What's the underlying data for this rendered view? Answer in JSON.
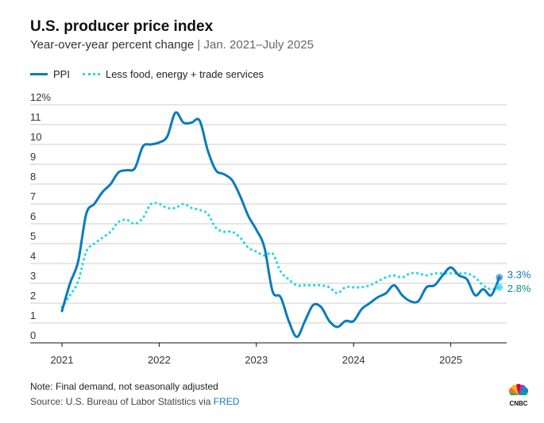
{
  "header": {
    "title": "U.S. producer price index",
    "subtitle": "Year-over-year percent change",
    "subtitle_sep": " | ",
    "subtitle_range": "Jan. 2021–July 2025"
  },
  "colors": {
    "ppi": "#0a7bbd",
    "core": "#28d8ea",
    "core_label": "#0a8f8f",
    "grid": "#cccccc"
  },
  "chart_data": {
    "type": "line",
    "title": "U.S. producer price index",
    "ylabel": "Year-over-year percent change",
    "xlabel": "",
    "ylim": [
      0,
      12
    ],
    "y_ticks": [
      "0",
      "1",
      "2",
      "3",
      "4",
      "5",
      "6",
      "7",
      "8",
      "9",
      "10",
      "11",
      "12%"
    ],
    "x_ticks": [
      "2021",
      "2022",
      "2023",
      "2024",
      "2025"
    ],
    "x_start": "2021-01",
    "frequency": "monthly",
    "grid": true,
    "legend": "top-left",
    "series": [
      {
        "name": "PPI",
        "end_label": "3.3%",
        "values": [
          1.6,
          3.0,
          4.1,
          6.5,
          7.0,
          7.6,
          8.0,
          8.6,
          8.7,
          8.8,
          9.9,
          10.0,
          10.1,
          10.4,
          11.6,
          11.1,
          11.1,
          11.2,
          9.7,
          8.7,
          8.5,
          8.2,
          7.4,
          6.4,
          5.7,
          4.8,
          2.6,
          2.3,
          1.1,
          0.3,
          1.1,
          1.9,
          1.8,
          1.1,
          0.8,
          1.1,
          1.1,
          1.7,
          2.0,
          2.3,
          2.5,
          2.9,
          2.4,
          2.1,
          2.1,
          2.8,
          2.9,
          3.4,
          3.8,
          3.4,
          3.2,
          2.4,
          2.7,
          2.4,
          3.3
        ]
      },
      {
        "name": "Less food, energy + trade services",
        "end_label": "2.8%",
        "values": [
          1.8,
          2.4,
          3.1,
          4.6,
          5.0,
          5.3,
          5.6,
          6.1,
          6.2,
          6.0,
          6.3,
          7.0,
          7.0,
          6.8,
          6.8,
          7.0,
          6.8,
          6.7,
          6.5,
          5.8,
          5.6,
          5.6,
          5.3,
          4.8,
          4.6,
          4.4,
          4.5,
          3.6,
          3.2,
          2.9,
          2.9,
          2.9,
          2.9,
          2.8,
          2.5,
          2.8,
          2.8,
          2.8,
          2.9,
          3.1,
          3.3,
          3.4,
          3.3,
          3.5,
          3.5,
          3.4,
          3.5,
          3.5,
          3.5,
          3.5,
          3.5,
          3.3,
          2.9,
          2.7,
          2.8
        ]
      }
    ]
  },
  "footer": {
    "note": "Note: Final demand, not seasonally adjusted",
    "source_prefix": "Source: U.S. Bureau of Labor Statistics via ",
    "source_link": "FRED",
    "logo_text": "CNBC"
  }
}
